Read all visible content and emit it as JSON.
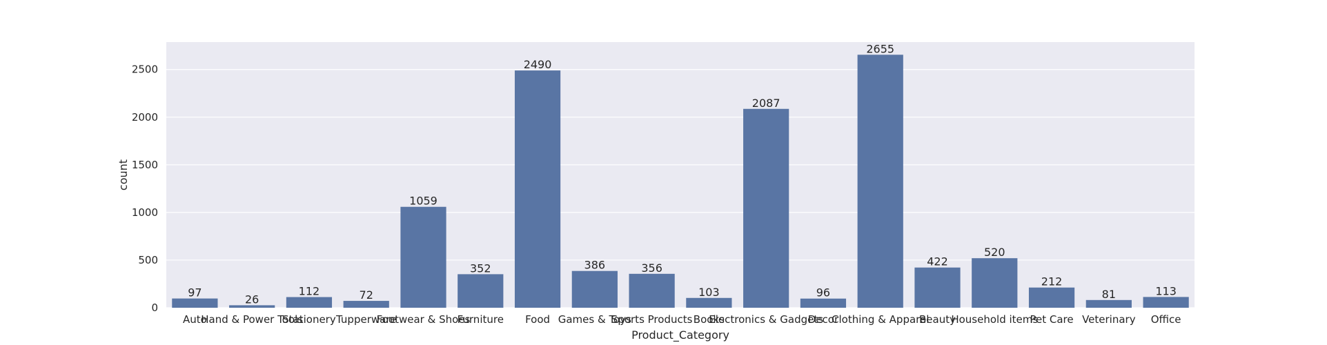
{
  "chart_data": {
    "type": "bar",
    "xlabel": "Product_Category",
    "ylabel": "count",
    "categories": [
      "Auto",
      "Hand & Power Tools",
      "Stationery",
      "Tupperware",
      "Footwear & Shoes",
      "Furniture",
      "Food",
      "Games & Toys",
      "Sports Products",
      "Books",
      "Electronics & Gadgets",
      "Decor",
      "Clothing & Apparel",
      "Beauty",
      "Household items",
      "Pet Care",
      "Veterinary",
      "Office"
    ],
    "values": [
      97,
      26,
      112,
      72,
      1059,
      352,
      2490,
      386,
      356,
      103,
      2087,
      96,
      2655,
      422,
      520,
      212,
      81,
      113
    ],
    "yticks": [
      0,
      500,
      1000,
      1500,
      2000,
      2500
    ],
    "ylim": [
      0,
      2787.75
    ],
    "grid": true,
    "colors": {
      "bar": "#5975a4",
      "background": "#eaeaf2",
      "grid": "#ffffff"
    }
  }
}
